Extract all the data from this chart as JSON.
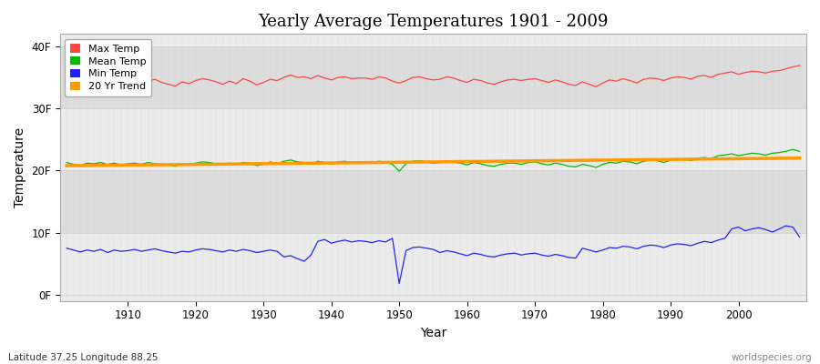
{
  "title": "Yearly Average Temperatures 1901 - 2009",
  "xlabel": "Year",
  "ylabel": "Temperature",
  "lat_lon_label": "Latitude 37.25 Longitude 88.25",
  "watermark": "worldspecies.org",
  "years": [
    1901,
    1902,
    1903,
    1904,
    1905,
    1906,
    1907,
    1908,
    1909,
    1910,
    1911,
    1912,
    1913,
    1914,
    1915,
    1916,
    1917,
    1918,
    1919,
    1920,
    1921,
    1922,
    1923,
    1924,
    1925,
    1926,
    1927,
    1928,
    1929,
    1930,
    1931,
    1932,
    1933,
    1934,
    1935,
    1936,
    1937,
    1938,
    1939,
    1940,
    1941,
    1942,
    1943,
    1944,
    1945,
    1946,
    1947,
    1948,
    1949,
    1950,
    1951,
    1952,
    1953,
    1954,
    1955,
    1956,
    1957,
    1958,
    1959,
    1960,
    1961,
    1962,
    1963,
    1964,
    1965,
    1966,
    1967,
    1968,
    1969,
    1970,
    1971,
    1972,
    1973,
    1974,
    1975,
    1976,
    1977,
    1978,
    1979,
    1980,
    1981,
    1982,
    1983,
    1984,
    1985,
    1986,
    1987,
    1988,
    1989,
    1990,
    1991,
    1992,
    1993,
    1994,
    1995,
    1996,
    1997,
    1998,
    1999,
    2000,
    2001,
    2002,
    2003,
    2004,
    2005,
    2006,
    2007,
    2008,
    2009
  ],
  "max_temp": [
    34.8,
    34.1,
    33.8,
    34.5,
    34.0,
    34.6,
    33.9,
    34.7,
    34.2,
    34.0,
    35.0,
    34.1,
    34.4,
    34.7,
    34.2,
    33.9,
    33.6,
    34.3,
    34.0,
    34.5,
    34.8,
    34.6,
    34.3,
    33.9,
    34.4,
    34.0,
    34.8,
    34.4,
    33.8,
    34.2,
    34.7,
    34.5,
    35.0,
    35.4,
    35.0,
    35.1,
    34.8,
    35.3,
    34.9,
    34.6,
    35.0,
    35.1,
    34.8,
    34.9,
    34.9,
    34.7,
    35.1,
    34.9,
    34.4,
    34.1,
    34.5,
    35.0,
    35.1,
    34.8,
    34.6,
    34.7,
    35.1,
    34.9,
    34.5,
    34.2,
    34.7,
    34.5,
    34.1,
    33.9,
    34.3,
    34.6,
    34.7,
    34.5,
    34.7,
    34.8,
    34.5,
    34.2,
    34.6,
    34.3,
    33.9,
    33.7,
    34.3,
    33.9,
    33.5,
    34.1,
    34.6,
    34.4,
    34.8,
    34.5,
    34.1,
    34.7,
    34.9,
    34.8,
    34.5,
    34.9,
    35.1,
    35.0,
    34.7,
    35.2,
    35.3,
    35.0,
    35.5,
    35.7,
    35.9,
    35.5,
    35.8,
    36.0,
    35.9,
    35.7,
    36.0,
    36.1,
    36.4,
    36.7,
    36.9
  ],
  "mean_temp": [
    21.3,
    21.0,
    20.8,
    21.2,
    21.1,
    21.3,
    21.0,
    21.2,
    20.9,
    21.1,
    21.2,
    21.0,
    21.3,
    21.1,
    21.0,
    20.9,
    20.7,
    21.1,
    21.0,
    21.2,
    21.4,
    21.3,
    21.1,
    20.9,
    21.2,
    21.0,
    21.3,
    21.2,
    20.8,
    21.0,
    21.4,
    21.1,
    21.5,
    21.7,
    21.4,
    21.3,
    21.1,
    21.5,
    21.3,
    21.1,
    21.4,
    21.5,
    21.3,
    21.4,
    21.4,
    21.2,
    21.5,
    21.3,
    21.0,
    19.9,
    21.1,
    21.5,
    21.6,
    21.4,
    21.2,
    21.3,
    21.5,
    21.4,
    21.2,
    20.9,
    21.3,
    21.1,
    20.8,
    20.7,
    21.0,
    21.2,
    21.2,
    21.0,
    21.3,
    21.4,
    21.1,
    20.9,
    21.2,
    21.0,
    20.7,
    20.6,
    21.0,
    20.8,
    20.5,
    21.0,
    21.3,
    21.2,
    21.5,
    21.4,
    21.1,
    21.5,
    21.7,
    21.6,
    21.3,
    21.7,
    21.9,
    21.8,
    21.6,
    22.0,
    22.1,
    21.9,
    22.4,
    22.5,
    22.7,
    22.4,
    22.6,
    22.8,
    22.7,
    22.5,
    22.8,
    22.9,
    23.1,
    23.4,
    23.1
  ],
  "min_temp": [
    7.5,
    7.2,
    6.9,
    7.2,
    7.0,
    7.3,
    6.8,
    7.2,
    7.0,
    7.1,
    7.3,
    7.0,
    7.2,
    7.4,
    7.1,
    6.9,
    6.7,
    7.0,
    6.9,
    7.2,
    7.4,
    7.3,
    7.1,
    6.9,
    7.2,
    7.0,
    7.3,
    7.1,
    6.8,
    7.0,
    7.2,
    7.0,
    6.1,
    6.3,
    5.8,
    5.4,
    6.4,
    8.6,
    8.9,
    8.3,
    8.6,
    8.8,
    8.5,
    8.7,
    8.6,
    8.4,
    8.7,
    8.5,
    9.1,
    1.8,
    7.1,
    7.6,
    7.7,
    7.5,
    7.3,
    6.8,
    7.1,
    6.9,
    6.6,
    6.3,
    6.7,
    6.5,
    6.2,
    6.1,
    6.4,
    6.6,
    6.7,
    6.4,
    6.6,
    6.7,
    6.4,
    6.2,
    6.5,
    6.3,
    6.0,
    5.9,
    7.5,
    7.2,
    6.9,
    7.2,
    7.6,
    7.5,
    7.8,
    7.7,
    7.4,
    7.8,
    8.0,
    7.9,
    7.6,
    8.0,
    8.2,
    8.1,
    7.9,
    8.3,
    8.6,
    8.4,
    8.8,
    9.1,
    10.6,
    10.9,
    10.3,
    10.6,
    10.8,
    10.5,
    10.1,
    10.6,
    11.1,
    10.9,
    9.3
  ],
  "bg_color_light": "#ebebeb",
  "bg_color_dark": "#dcdcdc",
  "grid_color": "#ffffff",
  "max_color": "#ff4444",
  "mean_color": "#00bb00",
  "min_color": "#2222ff",
  "trend_color": "#ff9900",
  "yticks": [
    0,
    10,
    20,
    30,
    40
  ],
  "ytick_labels": [
    "0F",
    "10F",
    "20F",
    "30F",
    "40F"
  ],
  "ylim": [
    -1,
    42
  ],
  "xlim": [
    1900,
    2010
  ],
  "legend_labels": [
    "Max Temp",
    "Mean Temp",
    "Min Temp",
    "20 Yr Trend"
  ]
}
